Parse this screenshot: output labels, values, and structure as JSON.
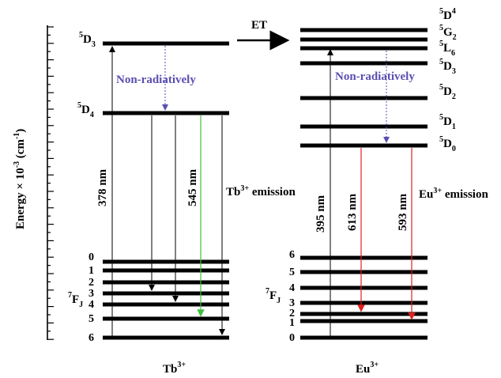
{
  "axis": {
    "ylabel_main": "Energy ×",
    "ylabel_base": "10",
    "ylabel_exp": "-3",
    "ylabel_unit_open": " (cm",
    "ylabel_unit_exp": "-1",
    "ylabel_unit_close": ")"
  },
  "tb": {
    "ion_label": "Tb",
    "ion_charge": "3+",
    "upper_level": {
      "sup": "5",
      "main": "D",
      "sub": "3"
    },
    "emitting_level": {
      "sup": "5",
      "main": "D",
      "sub": "4"
    },
    "ground_term": {
      "sup": "7",
      "main": "F",
      "sub": "J"
    },
    "ground_levels": [
      "0",
      "1",
      "2",
      "3",
      "4",
      "5",
      "6"
    ],
    "excitation_label": "378 nm",
    "emission_line_label": "545 nm",
    "emission_title": "Tb",
    "emission_title_sup": "3+",
    "emission_title_rest": " emission"
  },
  "nonrad_label": "Non-radiatively",
  "et_label": "ET",
  "eu": {
    "ion_label": "Eu",
    "ion_charge": "3+",
    "upper_levels": [
      {
        "sup": "5",
        "main": "D",
        "sub": "4"
      },
      {
        "sup": "5",
        "main": "G",
        "sub": "2"
      },
      {
        "sup": "5",
        "main": "L",
        "sub": "6"
      },
      {
        "sup": "5",
        "main": "D",
        "sub": "3"
      },
      {
        "sup": "5",
        "main": "D",
        "sub": "2"
      },
      {
        "sup": "5",
        "main": "D",
        "sub": "1"
      },
      {
        "sup": "5",
        "main": "D",
        "sub": "0"
      }
    ],
    "ground_term": {
      "sup": "7",
      "main": "F",
      "sub": "J"
    },
    "ground_levels": [
      "6",
      "5",
      "4",
      "3",
      "2",
      "1",
      "0"
    ],
    "excitation_label": "395 nm",
    "emission_labels": [
      "613 nm",
      "593 nm"
    ],
    "emission_title": "Eu",
    "emission_title_sup": "3+",
    "emission_title_rest": " emission"
  },
  "colors": {
    "level": "#000000",
    "nonrad": "#5a4fb0",
    "tb_green": "#3fbf3f",
    "eu_red": "#e02020"
  }
}
